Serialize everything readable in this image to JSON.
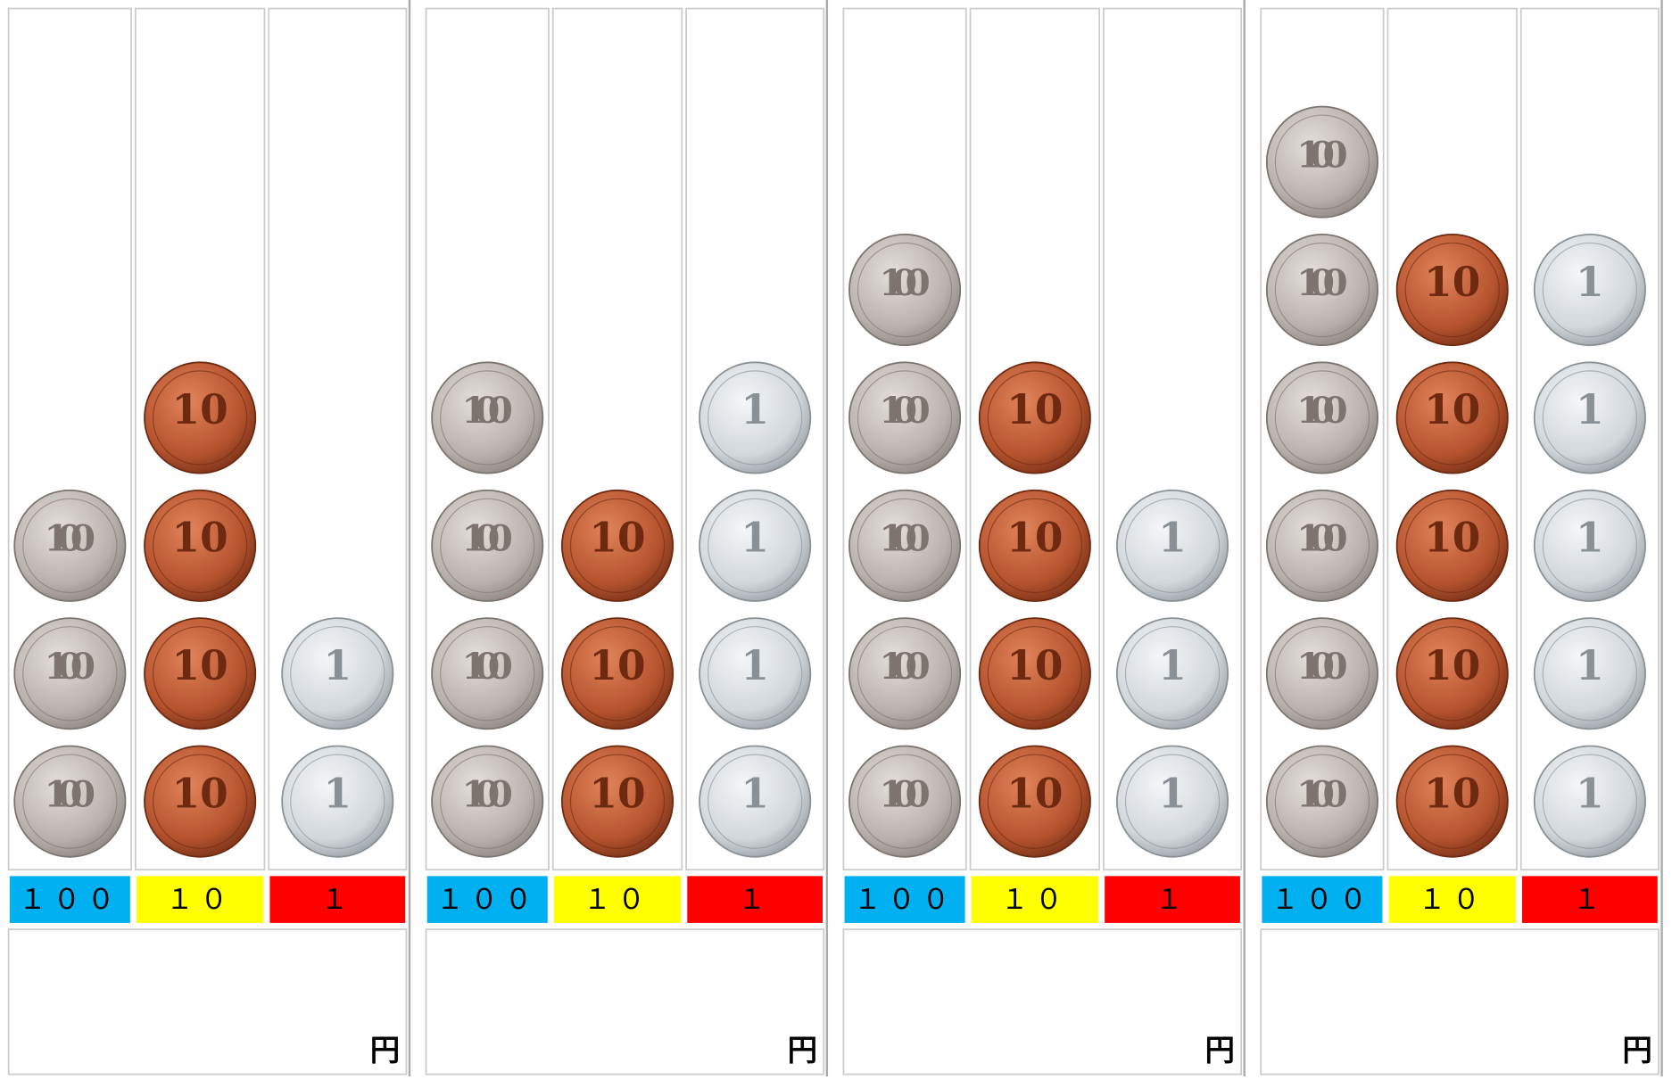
{
  "panels": [
    {
      "columns": [
        {
          "label": "１００",
          "face": "100",
          "color": "#00b0f0",
          "count": 3
        },
        {
          "label": "１０",
          "face": "10",
          "color": "#ffff00",
          "count": 4
        },
        {
          "label": "１",
          "face": "1",
          "color": "#ff0000",
          "count": 2
        }
      ],
      "unit": "円"
    },
    {
      "columns": [
        {
          "label": "１００",
          "face": "100",
          "color": "#00b0f0",
          "count": 4
        },
        {
          "label": "１０",
          "face": "10",
          "color": "#ffff00",
          "count": 3
        },
        {
          "label": "１",
          "face": "1",
          "color": "#ff0000",
          "count": 4
        }
      ],
      "unit": "円"
    },
    {
      "columns": [
        {
          "label": "１００",
          "face": "100",
          "color": "#00b0f0",
          "count": 5
        },
        {
          "label": "１０",
          "face": "10",
          "color": "#ffff00",
          "count": 4
        },
        {
          "label": "１",
          "face": "1",
          "color": "#ff0000",
          "count": 3
        }
      ],
      "unit": "円"
    },
    {
      "columns": [
        {
          "label": "１００",
          "face": "100",
          "color": "#00b0f0",
          "count": 6
        },
        {
          "label": "１０",
          "face": "10",
          "color": "#ffff00",
          "count": 5
        },
        {
          "label": "１",
          "face": "1",
          "color": "#ff0000",
          "count": 5
        }
      ],
      "unit": "円"
    }
  ]
}
